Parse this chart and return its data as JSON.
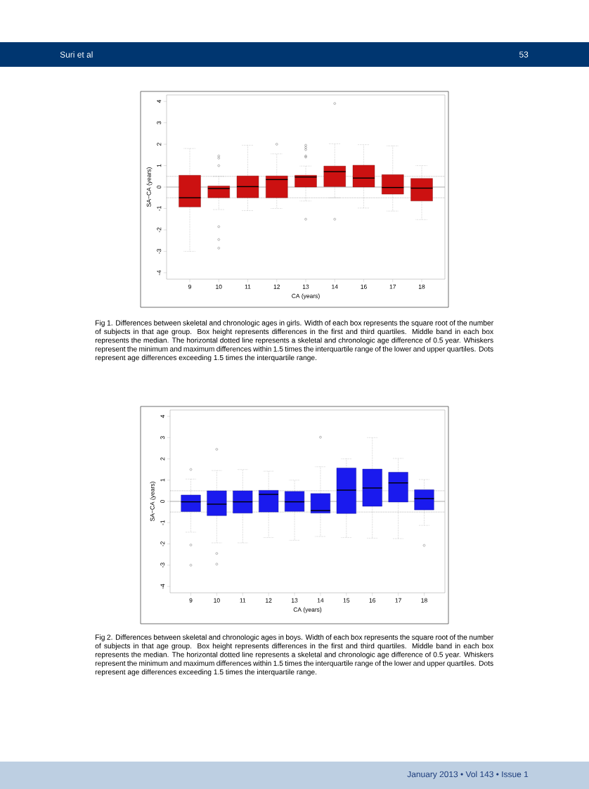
{
  "chart_data": [
    {
      "type": "box",
      "xlabel": "CA (years)",
      "ylabel": "SA−CA (years)",
      "color": "#cc1111",
      "categories": [
        "9",
        "10",
        "11",
        "12",
        "13",
        "14",
        "16",
        "17",
        "18"
      ],
      "boxes": [
        {
          "low": -3.0,
          "q1": -0.93,
          "median": -0.5,
          "q3": 0.55,
          "high": 1.8
        },
        {
          "low": -1.05,
          "q1": -0.5,
          "median": -0.07,
          "q3": 0.05,
          "high": 0.5,
          "outliers": [
            1.45,
            1.35,
            1.0,
            -1.85,
            -2.45,
            -2.85
          ]
        },
        {
          "low": -1.1,
          "q1": -0.5,
          "median": 0.02,
          "q3": 0.52,
          "high": 1.95
        },
        {
          "low": -1.0,
          "q1": -0.5,
          "median": 0.35,
          "q3": 0.52,
          "high": 1.55,
          "outliers": [
            2.0
          ]
        },
        {
          "low": -0.65,
          "q1": 0.0,
          "median": 0.47,
          "q3": 0.55,
          "high": 0.98,
          "outliers": [
            1.95,
            1.85,
            1.75,
            1.45,
            1.4,
            -1.5
          ]
        },
        {
          "low": -0.5,
          "q1": 0.02,
          "median": 0.72,
          "q3": 0.98,
          "high": 2.02,
          "outliers": [
            3.9,
            -1.5
          ]
        },
        {
          "low": -0.98,
          "q1": 0.0,
          "median": 0.42,
          "q3": 1.02,
          "high": 1.98
        },
        {
          "low": -1.12,
          "q1": -0.33,
          "median": -0.02,
          "q3": 0.58,
          "high": 1.92
        },
        {
          "low": -1.52,
          "q1": -0.65,
          "median": -0.05,
          "q3": 0.4,
          "high": 1.0
        }
      ],
      "ylim": [
        -4.3,
        4.3
      ],
      "yticks": [
        -4,
        -3,
        -2,
        -1,
        0,
        1,
        2,
        3,
        4
      ],
      "ref_lines": [
        {
          "axis": "y",
          "value": 0,
          "color": "#888888",
          "line_style": "solid"
        },
        {
          "axis": "y",
          "value": 0.5,
          "color": "#888888",
          "line_style": "dotted"
        },
        {
          "axis": "y",
          "value": -0.5,
          "color": "#888888",
          "line_style": "dotted"
        }
      ],
      "annotations": [
        "Suri et al",
        "53",
        "Fig 1. Differences between skeletal and chronologic ages in girls. Width of each box represents the square root of the number of subjects in that age group. Box height represents differences in the first and third quartiles. Middle band in each box represents the median. The horizontal dotted line represents a skeletal and chronologic age difference of 0.5 year. Whiskers represent the minimum and maximum differences within 1.5 times the interquartile range of the lower and upper quartiles. Dots represent age differences exceeding 1.5 times the interquartile range."
      ]
    },
    {
      "type": "box",
      "xlabel": "CA (years)",
      "ylabel": "SA−CA (years)",
      "color": "#1a1aee",
      "categories": [
        "9",
        "10",
        "11",
        "12",
        "13",
        "14",
        "15",
        "16",
        "17",
        "18"
      ],
      "boxes": [
        {
          "low": -1.45,
          "q1": -0.48,
          "median": -0.02,
          "q3": 0.3,
          "high": 1.05,
          "outliers": [
            1.5,
            -2.05,
            -3.0
          ]
        },
        {
          "low": -1.95,
          "q1": -0.67,
          "median": -0.13,
          "q3": 0.5,
          "high": 1.45,
          "outliers": [
            2.45,
            -2.45,
            -2.95
          ]
        },
        {
          "low": -1.95,
          "q1": -0.55,
          "median": -0.02,
          "q3": 0.5,
          "high": 1.5
        },
        {
          "low": -1.7,
          "q1": -0.5,
          "median": 0.33,
          "q3": 0.52,
          "high": 1.42
        },
        {
          "low": -1.83,
          "q1": -0.47,
          "median": -0.02,
          "q3": 0.47,
          "high": 1.0
        },
        {
          "low": -1.65,
          "q1": -0.55,
          "median": -0.43,
          "q3": 0.37,
          "high": 1.63,
          "outliers": [
            3.02
          ]
        },
        {
          "low": -1.7,
          "q1": -0.57,
          "median": 0.53,
          "q3": 1.57,
          "high": 2.0
        },
        {
          "low": -1.73,
          "q1": -0.23,
          "median": 0.63,
          "q3": 1.52,
          "high": 3.0
        },
        {
          "low": -1.75,
          "q1": -0.03,
          "median": 0.87,
          "q3": 1.37,
          "high": 2.02
        },
        {
          "low": -1.13,
          "q1": -0.4,
          "median": 0.13,
          "q3": 0.55,
          "high": 1.03,
          "outliers": [
            -2.07
          ]
        }
      ],
      "ylim": [
        -4.3,
        4.3
      ],
      "yticks": [
        -4,
        -3,
        -2,
        -1,
        0,
        1,
        2,
        3,
        4
      ],
      "ref_lines": [
        {
          "axis": "y",
          "value": 0,
          "color": "#888888",
          "line_style": "solid"
        },
        {
          "axis": "y",
          "value": 0.5,
          "color": "#888888",
          "line_style": "dotted"
        },
        {
          "axis": "y",
          "value": -0.5,
          "color": "#888888",
          "line_style": "dotted"
        }
      ],
      "annotations": [
        "Fig 2. Differences between skeletal and chronologic ages in boys. Width of each box represents the square root of the number of subjects in that age group. Box height represents differences in the first and third quartiles. Middle band in each box represents the median. The horizontal dotted line represents a skeletal and chronologic age difference of 0.5 year. Whiskers represent the minimum and maximum differences within 1.5 times the interquartile range of the lower and upper quartiles. Dots represent age differences exceeding 1.5 times the interquartile range.",
        "January 2013 • Vol 143 • Issue 1"
      ]
    }
  ]
}
